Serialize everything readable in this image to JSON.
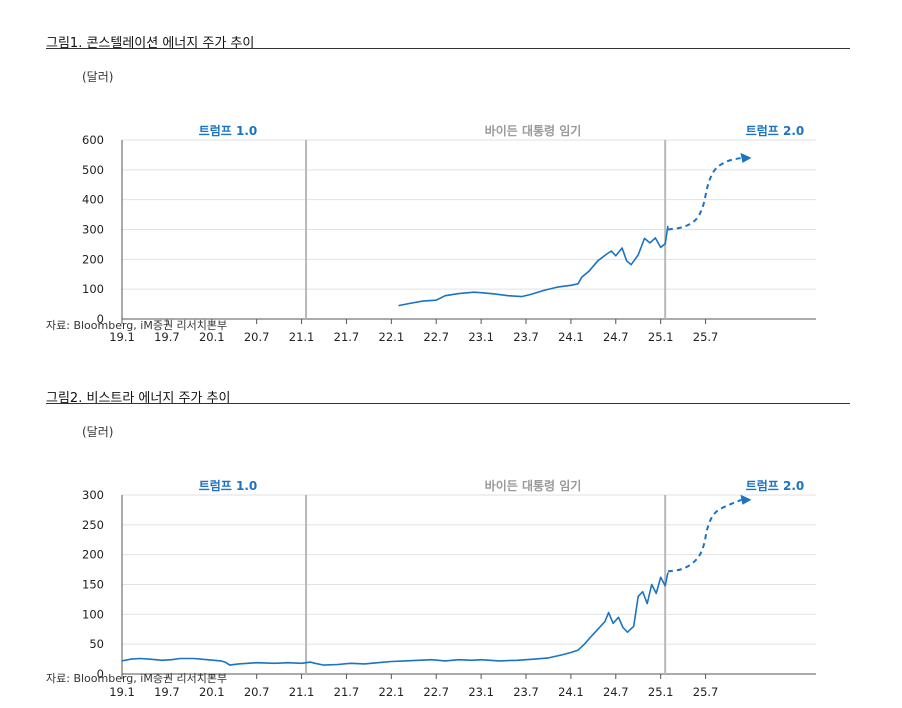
{
  "colors": {
    "line": "#1a73c3",
    "accent": "#1a73c3",
    "period_mid": "#9a9a9a",
    "grid": "#e2e2e2",
    "divider": "#b8b8b8"
  },
  "charts": [
    {
      "title": "그림1.   콘스텔레이션 에너지 주가 추이",
      "unit": "(달러)",
      "source": "자료: Bloomberg, iM증권 리서치본부",
      "chart_data": {
        "type": "line",
        "x_ticks": [
          "19.1",
          "19.7",
          "20.1",
          "20.7",
          "21.1",
          "21.7",
          "22.1",
          "22.7",
          "23.1",
          "23.7",
          "24.1",
          "24.7",
          "25.1",
          "25.7"
        ],
        "y_ticks": [
          0,
          100,
          200,
          300,
          400,
          500,
          600
        ],
        "ylim": [
          0,
          600
        ],
        "period_labels": [
          "트럼프 1.0",
          "바이든 대통령 임기",
          "트럼프 2.0"
        ],
        "series": [
          {
            "values": [
              [
                2022.08,
                45
              ],
              [
                2022.2,
                52
              ],
              [
                2022.35,
                60
              ],
              [
                2022.5,
                63
              ],
              [
                2022.6,
                78
              ],
              [
                2022.75,
                85
              ],
              [
                2022.92,
                90
              ],
              [
                2023.0,
                88
              ],
              [
                2023.15,
                84
              ],
              [
                2023.3,
                78
              ],
              [
                2023.45,
                75
              ],
              [
                2023.55,
                82
              ],
              [
                2023.7,
                96
              ],
              [
                2023.85,
                107
              ],
              [
                2024.0,
                113
              ],
              [
                2024.08,
                118
              ],
              [
                2024.12,
                140
              ],
              [
                2024.2,
                160
              ],
              [
                2024.3,
                195
              ],
              [
                2024.4,
                218
              ],
              [
                2024.45,
                228
              ],
              [
                2024.5,
                212
              ],
              [
                2024.57,
                238
              ],
              [
                2024.62,
                195
              ],
              [
                2024.67,
                182
              ],
              [
                2024.75,
                215
              ],
              [
                2024.82,
                270
              ],
              [
                2024.88,
                255
              ],
              [
                2024.94,
                272
              ],
              [
                2025.0,
                240
              ],
              [
                2025.05,
                252
              ],
              [
                2025.08,
                312
              ]
            ]
          },
          {
            "values": [
              [
                2025.08,
                300
              ],
              [
                2025.25,
                306
              ],
              [
                2025.4,
                330
              ],
              [
                2025.48,
                380
              ],
              [
                2025.52,
                450
              ],
              [
                2025.6,
                505
              ],
              [
                2025.75,
                532
              ],
              [
                2025.9,
                540
              ]
            ]
          }
        ]
      }
    },
    {
      "title": "그림2.   비스트라 에너지 주가 추이",
      "unit": "(달러)",
      "source": "자료: Bloomberg, iM증권 리서치본부",
      "chart_data": {
        "type": "line",
        "x_ticks": [
          "19.1",
          "19.7",
          "20.1",
          "20.7",
          "21.1",
          "21.7",
          "22.1",
          "22.7",
          "23.1",
          "23.7",
          "24.1",
          "24.7",
          "25.1",
          "25.7"
        ],
        "y_ticks": [
          0,
          50,
          100,
          150,
          200,
          250,
          300
        ],
        "ylim": [
          0,
          300
        ],
        "period_labels": [
          "트럼프 1.0",
          "바이든 대통령 임기",
          "트럼프 2.0"
        ],
        "series": [
          {
            "values": [
              [
                2019.0,
                22
              ],
              [
                2019.1,
                25
              ],
              [
                2019.2,
                26
              ],
              [
                2019.3,
                25
              ],
              [
                2019.45,
                23
              ],
              [
                2019.55,
                24
              ],
              [
                2019.65,
                26
              ],
              [
                2019.8,
                26
              ],
              [
                2019.95,
                24
              ],
              [
                2020.1,
                22
              ],
              [
                2020.15,
                20
              ],
              [
                2020.2,
                15
              ],
              [
                2020.3,
                17
              ],
              [
                2020.5,
                19
              ],
              [
                2020.7,
                18
              ],
              [
                2020.85,
                19
              ],
              [
                2021.0,
                18
              ],
              [
                2021.1,
                20
              ],
              [
                2021.15,
                18
              ],
              [
                2021.25,
                15
              ],
              [
                2021.4,
                16
              ],
              [
                2021.55,
                18
              ],
              [
                2021.7,
                17
              ],
              [
                2021.85,
                19
              ],
              [
                2022.0,
                21
              ],
              [
                2022.15,
                22
              ],
              [
                2022.3,
                23
              ],
              [
                2022.45,
                24
              ],
              [
                2022.6,
                22
              ],
              [
                2022.75,
                24
              ],
              [
                2022.9,
                23
              ],
              [
                2023.0,
                24
              ],
              [
                2023.2,
                22
              ],
              [
                2023.4,
                23
              ],
              [
                2023.6,
                25
              ],
              [
                2023.75,
                27
              ],
              [
                2023.9,
                32
              ],
              [
                2024.0,
                36
              ],
              [
                2024.08,
                40
              ],
              [
                2024.15,
                50
              ],
              [
                2024.22,
                62
              ],
              [
                2024.3,
                75
              ],
              [
                2024.38,
                88
              ],
              [
                2024.42,
                103
              ],
              [
                2024.47,
                85
              ],
              [
                2024.53,
                95
              ],
              [
                2024.58,
                78
              ],
              [
                2024.63,
                70
              ],
              [
                2024.7,
                80
              ],
              [
                2024.75,
                130
              ],
              [
                2024.8,
                138
              ],
              [
                2024.85,
                118
              ],
              [
                2024.9,
                150
              ],
              [
                2024.95,
                135
              ],
              [
                2025.0,
                162
              ],
              [
                2025.05,
                148
              ],
              [
                2025.08,
                170
              ]
            ]
          },
          {
            "values": [
              [
                2025.08,
                172
              ],
              [
                2025.25,
                175
              ],
              [
                2025.4,
                190
              ],
              [
                2025.48,
                212
              ],
              [
                2025.52,
                248
              ],
              [
                2025.6,
                272
              ],
              [
                2025.75,
                283
              ],
              [
                2025.9,
                292
              ]
            ]
          }
        ]
      }
    }
  ]
}
